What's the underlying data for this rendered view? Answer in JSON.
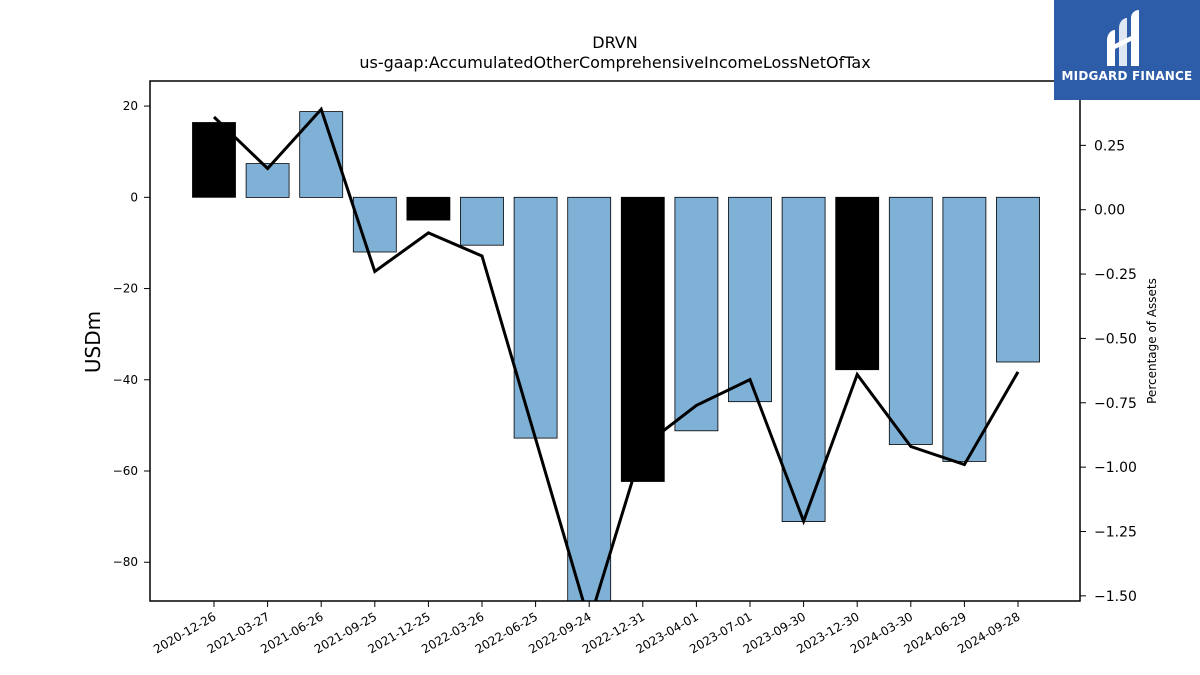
{
  "chart_data": {
    "type": "bar",
    "title": "DRVN",
    "subtitle": "us-gaap:AccumulatedOtherComprehensiveIncomeLossNetOfTax",
    "ylabel": "USDm",
    "y2label": "Percentage of Assets",
    "ylim": [
      -88.5,
      25.5
    ],
    "y2lim": [
      -1.52,
      0.5
    ],
    "yticks": [
      20,
      0,
      -20,
      -40,
      -60,
      -80
    ],
    "yticklabels": [
      "20",
      "0",
      "−20",
      "−40",
      "−60",
      "−80"
    ],
    "y2ticks": [
      0.25,
      0.0,
      -0.25,
      -0.5,
      -0.75,
      -1.0,
      -1.25,
      -1.5
    ],
    "y2ticklabels": [
      "0.25",
      "0.00",
      "−0.25",
      "−0.50",
      "−0.75",
      "−1.00",
      "−1.25",
      "−1.50"
    ],
    "categories": [
      "2020-12-26",
      "2021-03-27",
      "2021-06-26",
      "2021-09-25",
      "2021-12-25",
      "2022-03-26",
      "2022-06-25",
      "2022-09-24",
      "2022-12-31",
      "2023-04-01",
      "2023-07-01",
      "2023-09-30",
      "2023-12-30",
      "2024-03-30",
      "2024-06-29",
      "2024-09-28"
    ],
    "series": [
      {
        "values": [
          16.4,
          7.4,
          18.8,
          -12.0,
          -5.0,
          -10.5,
          -52.8,
          -89.0,
          -62.3,
          -51.2,
          -44.8,
          -71.1,
          -37.8,
          -54.2,
          -57.9,
          -36.1
        ],
        "colors": [
          "#000000",
          "#7fb0d5",
          "#7fb0d5",
          "#7fb0d5",
          "#000000",
          "#7fb0d5",
          "#7fb0d5",
          "#7fb0d5",
          "#000000",
          "#7fb0d5",
          "#7fb0d5",
          "#7fb0d5",
          "#000000",
          "#7fb0d5",
          "#7fb0d5",
          "#7fb0d5"
        ]
      },
      {
        "type": "line",
        "axis": "right",
        "color": "#000000",
        "values": [
          0.36,
          0.16,
          0.39,
          -0.24,
          -0.09,
          -0.18,
          -0.89,
          -1.6,
          -0.92,
          -0.76,
          -0.66,
          -1.21,
          -0.64,
          -0.92,
          -0.99,
          -0.63
        ]
      }
    ],
    "colors": {
      "highlight": "#000000",
      "default": "#7fb0d5",
      "line": "#000000"
    }
  },
  "logo": {
    "text": "MIDGARD FINANCE",
    "background": "#2d5ca8"
  }
}
